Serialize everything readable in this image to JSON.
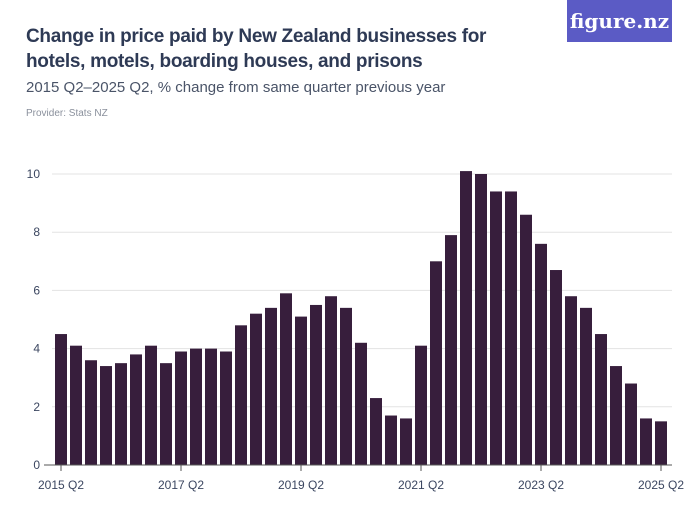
{
  "header": {
    "title": "Change in price paid by New Zealand businesses for hotels, motels, boarding houses, and prisons",
    "subtitle": "2015 Q2–2025 Q2, % change from same quarter previous year",
    "provider": "Provider: Stats NZ",
    "logo": "figure.nz"
  },
  "colors": {
    "bar": "#371e3c",
    "logo_bg": "#5b5bc5",
    "title": "#2e3a55"
  },
  "chart_data": {
    "type": "bar",
    "title": "Change in price paid by New Zealand businesses for hotels, motels, boarding houses, and prisons",
    "subtitle": "2015 Q2–2025 Q2, % change from same quarter previous year",
    "xlabel": "",
    "ylabel": "",
    "ylim": [
      0,
      10.2
    ],
    "yticks": [
      0,
      2,
      4,
      6,
      8,
      10
    ],
    "grid": true,
    "xtick_labels": [
      "2015 Q2",
      "2017 Q2",
      "2019 Q2",
      "2021 Q2",
      "2023 Q2",
      "2025 Q2"
    ],
    "xtick_index": [
      0,
      8,
      16,
      24,
      32,
      40
    ],
    "categories": [
      "2015 Q2",
      "2015 Q3",
      "2015 Q4",
      "2016 Q1",
      "2016 Q2",
      "2016 Q3",
      "2016 Q4",
      "2017 Q1",
      "2017 Q2",
      "2017 Q3",
      "2017 Q4",
      "2018 Q1",
      "2018 Q2",
      "2018 Q3",
      "2018 Q4",
      "2019 Q1",
      "2019 Q2",
      "2019 Q3",
      "2019 Q4",
      "2020 Q1",
      "2020 Q2",
      "2020 Q3",
      "2020 Q4",
      "2021 Q1",
      "2021 Q2",
      "2021 Q3",
      "2021 Q4",
      "2022 Q1",
      "2022 Q2",
      "2022 Q3",
      "2022 Q4",
      "2023 Q1",
      "2023 Q2",
      "2023 Q3",
      "2023 Q4",
      "2024 Q1",
      "2024 Q2",
      "2024 Q3",
      "2024 Q4",
      "2025 Q1",
      "2025 Q2"
    ],
    "values": [
      4.5,
      4.1,
      3.6,
      3.4,
      3.5,
      3.8,
      4.1,
      3.5,
      3.9,
      4.0,
      4.0,
      3.9,
      4.8,
      5.2,
      5.4,
      5.9,
      5.1,
      5.5,
      5.8,
      5.4,
      4.2,
      2.3,
      1.7,
      1.6,
      4.1,
      7.0,
      7.9,
      10.1,
      10.0,
      9.4,
      9.4,
      8.6,
      7.6,
      6.7,
      5.8,
      5.4,
      4.5,
      3.4,
      2.8,
      1.6,
      1.5
    ]
  }
}
